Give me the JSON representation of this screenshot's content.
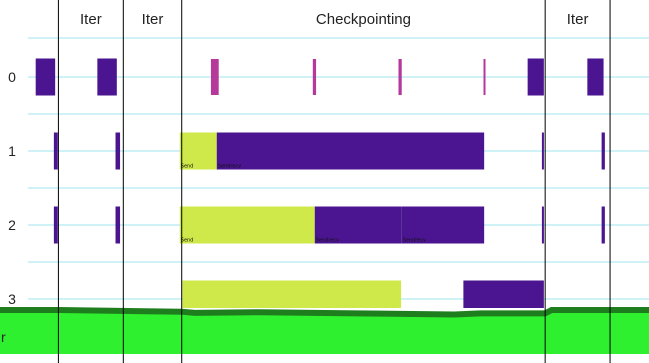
{
  "chart_data": {
    "type": "timeline",
    "phases": [
      {
        "label": "Iter",
        "start": 0.09,
        "end": 0.19
      },
      {
        "label": "Iter",
        "start": 0.19,
        "end": 0.28
      },
      {
        "label": "Checkpointing",
        "start": 0.28,
        "end": 0.84
      },
      {
        "label": "Iter",
        "start": 0.84,
        "end": 0.94
      }
    ],
    "ranks": [
      "0",
      "1",
      "2",
      "3"
    ],
    "cropped_row_label": "r",
    "colors": {
      "compute": "#4b1591",
      "send": "#cfe84a",
      "io": "#b5399b",
      "memory_fill": "#2ff02f",
      "memory_line": "#1e7e1e",
      "gridline": "#9fe6ee",
      "boundary": "#000000"
    },
    "events": [
      {
        "rank": 0,
        "start": 0.055,
        "end": 0.085,
        "kind": "compute"
      },
      {
        "rank": 0,
        "start": 0.15,
        "end": 0.18,
        "kind": "compute"
      },
      {
        "rank": 0,
        "start": 0.325,
        "end": 0.337,
        "kind": "io"
      },
      {
        "rank": 0,
        "start": 0.482,
        "end": 0.487,
        "kind": "io"
      },
      {
        "rank": 0,
        "start": 0.614,
        "end": 0.619,
        "kind": "io"
      },
      {
        "rank": 0,
        "start": 0.745,
        "end": 0.748,
        "kind": "io"
      },
      {
        "rank": 0,
        "start": 0.813,
        "end": 0.838,
        "kind": "compute"
      },
      {
        "rank": 0,
        "start": 0.905,
        "end": 0.93,
        "kind": "compute"
      },
      {
        "rank": 1,
        "start": 0.083,
        "end": 0.089,
        "kind": "compute"
      },
      {
        "rank": 1,
        "start": 0.178,
        "end": 0.185,
        "kind": "compute"
      },
      {
        "rank": 1,
        "start": 0.277,
        "end": 0.334,
        "kind": "send",
        "label": "Send"
      },
      {
        "rank": 1,
        "start": 0.334,
        "end": 0.746,
        "kind": "compute",
        "label": "Sendrecv"
      },
      {
        "rank": 1,
        "start": 0.835,
        "end": 0.838,
        "kind": "compute"
      },
      {
        "rank": 1,
        "start": 0.927,
        "end": 0.932,
        "kind": "compute"
      },
      {
        "rank": 2,
        "start": 0.083,
        "end": 0.089,
        "kind": "compute"
      },
      {
        "rank": 2,
        "start": 0.178,
        "end": 0.185,
        "kind": "compute"
      },
      {
        "rank": 2,
        "start": 0.277,
        "end": 0.485,
        "kind": "send",
        "label": "Send"
      },
      {
        "rank": 2,
        "start": 0.485,
        "end": 0.619,
        "kind": "compute",
        "label": "Sendrecv"
      },
      {
        "rank": 2,
        "start": 0.619,
        "end": 0.746,
        "kind": "compute",
        "label": "Sendrecv"
      },
      {
        "rank": 2,
        "start": 0.835,
        "end": 0.838,
        "kind": "compute"
      },
      {
        "rank": 2,
        "start": 0.927,
        "end": 0.932,
        "kind": "compute"
      },
      {
        "rank": 3,
        "start": 0.281,
        "end": 0.618,
        "kind": "send",
        "label": "Send"
      },
      {
        "rank": 3,
        "start": 0.714,
        "end": 0.838,
        "kind": "compute",
        "label": "Sendrecv"
      }
    ],
    "memory_profile": [
      {
        "t": 0.0,
        "level": 0.78
      },
      {
        "t": 0.09,
        "level": 0.78
      },
      {
        "t": 0.28,
        "level": 0.75
      },
      {
        "t": 0.3,
        "level": 0.73
      },
      {
        "t": 0.4,
        "level": 0.74
      },
      {
        "t": 0.55,
        "level": 0.72
      },
      {
        "t": 0.7,
        "level": 0.7
      },
      {
        "t": 0.74,
        "level": 0.72
      },
      {
        "t": 0.84,
        "level": 0.72
      },
      {
        "t": 0.85,
        "level": 0.78
      },
      {
        "t": 1.0,
        "level": 0.78
      }
    ]
  }
}
